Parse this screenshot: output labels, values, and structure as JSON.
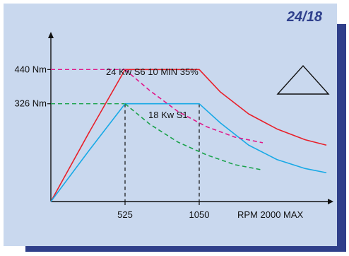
{
  "code_label": "24/18",
  "colors": {
    "panel_bg": "#c9d8ee",
    "shadow": "#2f3f8a",
    "axis": "#111111",
    "s6_torque": "#e8202a",
    "s6_power": "#e0188a",
    "s1_torque": "#18a9e6",
    "s1_power": "#19a24a",
    "guide": "#111111"
  },
  "icon": "triangle-outline-icon",
  "chart_data": {
    "type": "line",
    "title": "",
    "xlabel": "RPM 2000 MAX",
    "ylabel": "",
    "xlim": [
      0,
      2000
    ],
    "ylim": [
      0,
      620
    ],
    "x_ticks": [
      {
        "value": 525,
        "label": "525"
      },
      {
        "value": 1050,
        "label": "1050"
      }
    ],
    "y_ticks": [
      {
        "value": 440,
        "label": "440 Nm"
      },
      {
        "value": 326,
        "label": "326 Nm"
      }
    ],
    "x_axis_label": "RPM 2000 MAX",
    "series": [
      {
        "name": "24 Kw S6 10 MIN 35%",
        "key": "s6_torque",
        "style": "solid",
        "x": [
          0,
          270,
          525,
          800,
          1050,
          1200,
          1400,
          1600,
          1800,
          1950
        ],
        "y": [
          0,
          230,
          440,
          440,
          440,
          365,
          292,
          242,
          206,
          188
        ]
      },
      {
        "name": "18 Kw S1",
        "key": "s1_torque",
        "style": "solid",
        "x": [
          0,
          270,
          525,
          800,
          1050,
          1200,
          1400,
          1600,
          1800,
          1950
        ],
        "y": [
          0,
          170,
          326,
          326,
          326,
          262,
          188,
          140,
          110,
          96
        ]
      },
      {
        "name": "",
        "key": "s6_power",
        "style": "dashed",
        "x": [
          525,
          700,
          900,
          1100,
          1300,
          1500
        ],
        "y": [
          440,
          370,
          300,
          250,
          215,
          196
        ]
      },
      {
        "name": "",
        "key": "s1_power",
        "style": "dashed",
        "x": [
          525,
          700,
          900,
          1100,
          1300,
          1500
        ],
        "y": [
          326,
          258,
          198,
          156,
          123,
          105
        ]
      }
    ],
    "guides": [
      {
        "key": "s6_torque",
        "type": "horizontal",
        "y": 440,
        "x_to": 525,
        "color": "#e0188a"
      },
      {
        "key": "s1_torque",
        "type": "horizontal",
        "y": 326,
        "x_to": 525,
        "color": "#19a24a"
      },
      {
        "type": "vertical",
        "x": 525,
        "y_to": 326,
        "color": "#111111"
      },
      {
        "type": "vertical",
        "x": 1050,
        "y_to": 326,
        "color": "#111111"
      }
    ],
    "grid": false,
    "legend": "none"
  }
}
